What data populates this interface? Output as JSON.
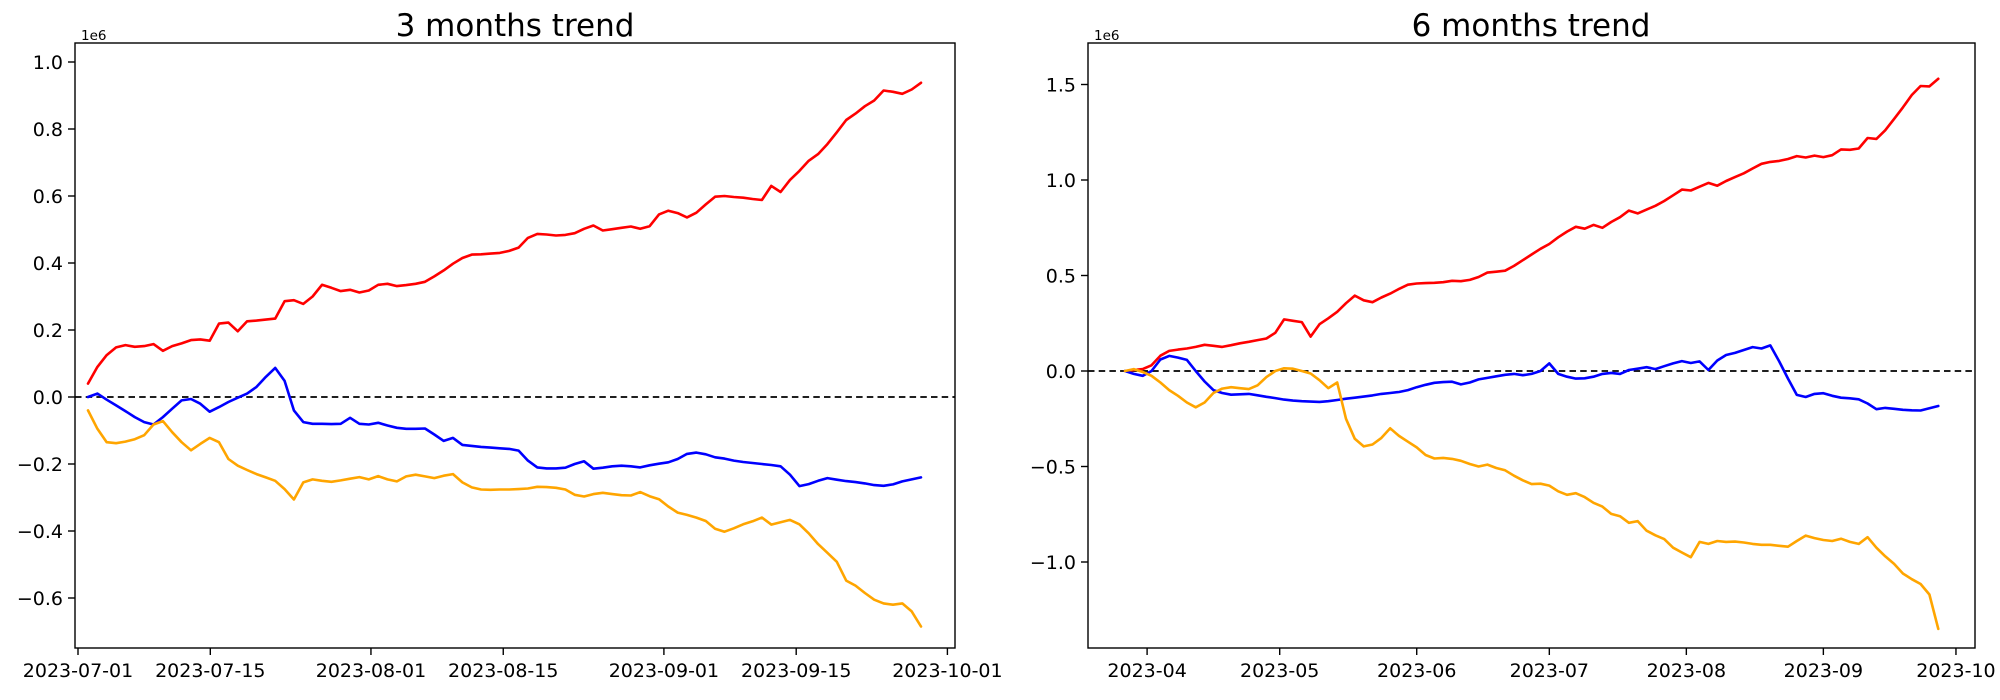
{
  "page": {
    "background": "#ffffff"
  },
  "chart_data": [
    {
      "id": "trend3m",
      "type": "line",
      "title": "3 months trend",
      "scale_annotation": "1e6",
      "xlabel": "",
      "ylabel": "",
      "grid": false,
      "legend": null,
      "x_start_date": "2023-07-01",
      "x_end_date": "2023-09-28",
      "x_step_days": 1,
      "x_tick_labels": [
        "2023-07-01",
        "2023-07-15",
        "2023-08-01",
        "2023-08-15",
        "2023-09-01",
        "2023-09-15",
        "2023-10-01"
      ],
      "x_tick_day_offsets": [
        0,
        14,
        31,
        45,
        62,
        76,
        92
      ],
      "y_tick_labels": [
        "1.0",
        "0.8",
        "0.6",
        "0.4",
        "0.2",
        "0.0",
        "−0.2",
        "−0.4",
        "−0.6"
      ],
      "y_tick_values": [
        1.0,
        0.8,
        0.6,
        0.4,
        0.2,
        0.0,
        -0.2,
        -0.4,
        -0.6
      ],
      "ylim": [
        -0.75,
        1.06
      ],
      "y_unit_multiplier": 1000000,
      "zero_line": {
        "style": "dashed",
        "color": "#000000",
        "value": 0
      },
      "series": [
        {
          "name": "red",
          "color": "#ff0000",
          "values": [
            0.04,
            0.09,
            0.125,
            0.148,
            0.155,
            0.15,
            0.152,
            0.158,
            0.138,
            0.152,
            0.16,
            0.17,
            0.172,
            0.168,
            0.219,
            0.222,
            0.196,
            0.226,
            0.228,
            0.231,
            0.234,
            0.286,
            0.289,
            0.278,
            0.3,
            0.335,
            0.326,
            0.316,
            0.32,
            0.312,
            0.318,
            0.335,
            0.338,
            0.331,
            0.334,
            0.338,
            0.344,
            0.36,
            0.378,
            0.398,
            0.415,
            0.425,
            0.426,
            0.428,
            0.43,
            0.436,
            0.446,
            0.475,
            0.487,
            0.485,
            0.482,
            0.484,
            0.489,
            0.502,
            0.512,
            0.497,
            0.501,
            0.505,
            0.509,
            0.502,
            0.51,
            0.545,
            0.556,
            0.549,
            0.536,
            0.55,
            0.575,
            0.598,
            0.6,
            0.597,
            0.595,
            0.591,
            0.588,
            0.63,
            0.612,
            0.648,
            0.675,
            0.705,
            0.725,
            0.755,
            0.79,
            0.827,
            0.846,
            0.868,
            0.885,
            0.915,
            0.911,
            0.905,
            0.918,
            0.938
          ]
        },
        {
          "name": "blue",
          "color": "#0000ff",
          "values": [
            0.0,
            0.01,
            -0.008,
            -0.025,
            -0.042,
            -0.06,
            -0.075,
            -0.082,
            -0.06,
            -0.035,
            -0.01,
            -0.006,
            -0.02,
            -0.044,
            -0.03,
            -0.015,
            -0.002,
            0.01,
            0.03,
            0.06,
            0.087,
            0.048,
            -0.04,
            -0.075,
            -0.08,
            -0.08,
            -0.081,
            -0.08,
            -0.062,
            -0.08,
            -0.082,
            -0.077,
            -0.085,
            -0.092,
            -0.095,
            -0.095,
            -0.094,
            -0.112,
            -0.131,
            -0.122,
            -0.143,
            -0.146,
            -0.149,
            -0.151,
            -0.153,
            -0.155,
            -0.16,
            -0.19,
            -0.21,
            -0.213,
            -0.213,
            -0.211,
            -0.2,
            -0.192,
            -0.214,
            -0.211,
            -0.207,
            -0.205,
            -0.207,
            -0.21,
            -0.204,
            -0.199,
            -0.195,
            -0.185,
            -0.17,
            -0.166,
            -0.171,
            -0.18,
            -0.184,
            -0.19,
            -0.194,
            -0.197,
            -0.2,
            -0.203,
            -0.207,
            -0.232,
            -0.266,
            -0.26,
            -0.25,
            -0.242,
            -0.247,
            -0.251,
            -0.254,
            -0.258,
            -0.263,
            -0.265,
            -0.261,
            -0.252,
            -0.246,
            -0.24
          ]
        },
        {
          "name": "orange",
          "color": "#ffa500",
          "values": [
            -0.04,
            -0.095,
            -0.135,
            -0.138,
            -0.133,
            -0.126,
            -0.114,
            -0.082,
            -0.072,
            -0.105,
            -0.135,
            -0.159,
            -0.14,
            -0.122,
            -0.135,
            -0.185,
            -0.205,
            -0.218,
            -0.23,
            -0.24,
            -0.25,
            -0.275,
            -0.306,
            -0.255,
            -0.246,
            -0.25,
            -0.253,
            -0.249,
            -0.244,
            -0.239,
            -0.246,
            -0.236,
            -0.246,
            -0.252,
            -0.237,
            -0.232,
            -0.237,
            -0.242,
            -0.235,
            -0.23,
            -0.255,
            -0.27,
            -0.276,
            -0.277,
            -0.276,
            -0.276,
            -0.275,
            -0.273,
            -0.268,
            -0.269,
            -0.271,
            -0.276,
            -0.292,
            -0.297,
            -0.29,
            -0.286,
            -0.29,
            -0.293,
            -0.294,
            -0.284,
            -0.296,
            -0.305,
            -0.327,
            -0.345,
            -0.352,
            -0.36,
            -0.37,
            -0.393,
            -0.402,
            -0.392,
            -0.38,
            -0.371,
            -0.36,
            -0.381,
            -0.374,
            -0.367,
            -0.38,
            -0.407,
            -0.439,
            -0.465,
            -0.492,
            -0.548,
            -0.563,
            -0.585,
            -0.605,
            -0.616,
            -0.62,
            -0.616,
            -0.64,
            -0.685
          ]
        }
      ]
    },
    {
      "id": "trend6m",
      "type": "line",
      "title": "6 months trend",
      "scale_annotation": "1e6",
      "xlabel": "",
      "ylabel": "",
      "grid": false,
      "legend": null,
      "x_start_date": "2023-03-27",
      "x_end_date": "2023-09-27",
      "x_step_days": 2,
      "x_tick_labels": [
        "2023-04",
        "2023-05",
        "2023-06",
        "2023-07",
        "2023-08",
        "2023-09",
        "2023-10"
      ],
      "x_tick_day_offsets": [
        5,
        35,
        66,
        96,
        127,
        158,
        188
      ],
      "y_tick_labels": [
        "1.5",
        "1.0",
        "0.5",
        "0.0",
        "−0.5",
        "−1.0"
      ],
      "y_tick_values": [
        1.5,
        1.0,
        0.5,
        0.0,
        -0.5,
        -1.0
      ],
      "ylim": [
        -1.45,
        1.72
      ],
      "y_unit_multiplier": 1000000,
      "zero_line": {
        "style": "dashed",
        "color": "#000000",
        "value": 0
      },
      "series": [
        {
          "name": "red",
          "color": "#ff0000",
          "values": [
            0.0,
            0.005,
            0.01,
            0.03,
            0.08,
            0.105,
            0.112,
            0.118,
            0.126,
            0.137,
            0.132,
            0.126,
            0.135,
            0.145,
            0.153,
            0.162,
            0.17,
            0.2,
            0.27,
            0.263,
            0.256,
            0.18,
            0.245,
            0.276,
            0.31,
            0.355,
            0.395,
            0.37,
            0.36,
            0.385,
            0.405,
            0.43,
            0.452,
            0.458,
            0.46,
            0.462,
            0.465,
            0.472,
            0.47,
            0.477,
            0.492,
            0.515,
            0.52,
            0.525,
            0.55,
            0.58,
            0.61,
            0.64,
            0.665,
            0.7,
            0.73,
            0.755,
            0.745,
            0.765,
            0.75,
            0.78,
            0.805,
            0.84,
            0.825,
            0.845,
            0.865,
            0.89,
            0.92,
            0.95,
            0.945,
            0.965,
            0.985,
            0.97,
            0.995,
            1.015,
            1.035,
            1.06,
            1.085,
            1.095,
            1.1,
            1.11,
            1.125,
            1.118,
            1.128,
            1.12,
            1.13,
            1.16,
            1.158,
            1.165,
            1.22,
            1.215,
            1.26,
            1.32,
            1.38,
            1.445,
            1.492,
            1.49,
            1.53
          ]
        },
        {
          "name": "blue",
          "color": "#0000ff",
          "values": [
            0.0,
            -0.015,
            -0.025,
            0.0,
            0.06,
            0.079,
            0.07,
            0.058,
            0.0,
            -0.055,
            -0.1,
            -0.115,
            -0.124,
            -0.122,
            -0.12,
            -0.127,
            -0.135,
            -0.142,
            -0.15,
            -0.155,
            -0.158,
            -0.16,
            -0.162,
            -0.158,
            -0.152,
            -0.145,
            -0.14,
            -0.134,
            -0.128,
            -0.12,
            -0.115,
            -0.11,
            -0.1,
            -0.085,
            -0.072,
            -0.062,
            -0.058,
            -0.056,
            -0.07,
            -0.06,
            -0.044,
            -0.036,
            -0.028,
            -0.02,
            -0.015,
            -0.022,
            -0.015,
            0.0,
            0.04,
            -0.015,
            -0.03,
            -0.04,
            -0.038,
            -0.03,
            -0.015,
            -0.01,
            -0.015,
            0.005,
            0.012,
            0.02,
            0.01,
            0.025,
            0.04,
            0.052,
            0.042,
            0.05,
            0.005,
            0.055,
            0.084,
            0.095,
            0.11,
            0.125,
            0.118,
            0.134,
            0.05,
            -0.04,
            -0.125,
            -0.136,
            -0.12,
            -0.116,
            -0.13,
            -0.14,
            -0.143,
            -0.148,
            -0.17,
            -0.2,
            -0.193,
            -0.198,
            -0.203,
            -0.206,
            -0.207,
            -0.195,
            -0.183
          ]
        },
        {
          "name": "orange",
          "color": "#ffa500",
          "values": [
            0.0,
            0.01,
            -0.005,
            -0.025,
            -0.06,
            -0.1,
            -0.13,
            -0.165,
            -0.19,
            -0.165,
            -0.115,
            -0.092,
            -0.085,
            -0.09,
            -0.095,
            -0.075,
            -0.032,
            0.0,
            0.014,
            0.012,
            0.0,
            -0.013,
            -0.048,
            -0.09,
            -0.06,
            -0.25,
            -0.355,
            -0.395,
            -0.385,
            -0.35,
            -0.3,
            -0.34,
            -0.37,
            -0.4,
            -0.44,
            -0.458,
            -0.455,
            -0.46,
            -0.47,
            -0.487,
            -0.5,
            -0.49,
            -0.508,
            -0.52,
            -0.548,
            -0.572,
            -0.592,
            -0.59,
            -0.6,
            -0.63,
            -0.648,
            -0.64,
            -0.66,
            -0.69,
            -0.71,
            -0.748,
            -0.76,
            -0.795,
            -0.786,
            -0.836,
            -0.86,
            -0.88,
            -0.925,
            -0.95,
            -0.975,
            -0.895,
            -0.905,
            -0.89,
            -0.895,
            -0.893,
            -0.898,
            -0.905,
            -0.91,
            -0.91,
            -0.915,
            -0.92,
            -0.89,
            -0.862,
            -0.875,
            -0.885,
            -0.89,
            -0.878,
            -0.895,
            -0.905,
            -0.87,
            -0.925,
            -0.97,
            -1.01,
            -1.06,
            -1.09,
            -1.115,
            -1.17,
            -1.35
          ]
        }
      ]
    }
  ]
}
